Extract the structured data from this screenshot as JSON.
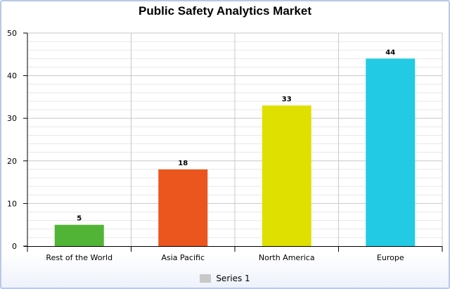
{
  "chart_data": {
    "type": "bar",
    "title": "Public Safety Analytics Market",
    "categories": [
      "Rest of the World",
      "Asia Pacific",
      "North America",
      "Europe"
    ],
    "series": [
      {
        "name": "Series 1",
        "values": [
          5,
          18,
          33,
          44
        ],
        "colors": [
          "#52b436",
          "#ea561e",
          "#dfe000",
          "#22cbe3"
        ]
      }
    ],
    "yticks": [
      0,
      10,
      20,
      30,
      40,
      50
    ],
    "ylim": [
      0,
      50
    ],
    "xlabel": "",
    "ylabel": "",
    "grid": true,
    "legend": "bottom"
  }
}
